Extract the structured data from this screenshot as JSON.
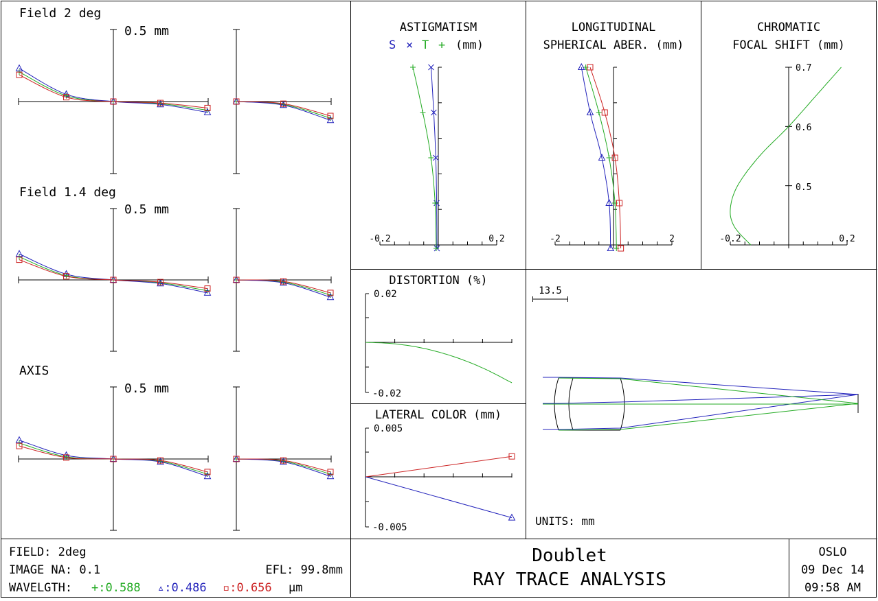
{
  "ray_fan": {
    "scale_label": "0.5 mm",
    "panels": [
      {
        "label": "Field 2 deg",
        "tan": {
          "pts_x": [
            -1,
            -0.5,
            0,
            0.5,
            1
          ],
          "green": [
            0.41,
            0.08,
            0,
            -0.03,
            -0.12
          ],
          "blue": [
            0.46,
            0.1,
            0,
            -0.04,
            -0.15
          ],
          "red": [
            0.37,
            0.06,
            0,
            -0.02,
            -0.09
          ]
        },
        "sag": {
          "pts_x": [
            0,
            0.5,
            1
          ],
          "green": [
            0,
            -0.04,
            -0.23
          ],
          "blue": [
            0,
            -0.05,
            -0.26
          ],
          "red": [
            0,
            -0.03,
            -0.2
          ]
        }
      },
      {
        "label": "Field 1.4 deg",
        "tan": {
          "pts_x": [
            -1,
            -0.5,
            0,
            0.5,
            1
          ],
          "green": [
            0.32,
            0.06,
            0,
            -0.04,
            -0.15
          ],
          "blue": [
            0.36,
            0.08,
            0,
            -0.05,
            -0.18
          ],
          "red": [
            0.28,
            0.05,
            0,
            -0.03,
            -0.12
          ]
        },
        "sag": {
          "pts_x": [
            0,
            0.5,
            1
          ],
          "green": [
            0,
            -0.03,
            -0.21
          ],
          "blue": [
            0,
            -0.04,
            -0.24
          ],
          "red": [
            0,
            -0.02,
            -0.18
          ]
        }
      },
      {
        "label": "AXIS",
        "tan": {
          "pts_x": [
            -1,
            -0.5,
            0,
            0.5,
            1
          ],
          "green": [
            0.22,
            0.03,
            0,
            -0.03,
            -0.21
          ],
          "blue": [
            0.26,
            0.05,
            0,
            -0.04,
            -0.24
          ],
          "red": [
            0.18,
            0.02,
            0,
            -0.02,
            -0.18
          ]
        },
        "sag": {
          "pts_x": [
            0,
            0.5,
            1
          ],
          "green": [
            0,
            -0.03,
            -0.21
          ],
          "blue": [
            0,
            -0.04,
            -0.24
          ],
          "red": [
            0,
            -0.02,
            -0.18
          ]
        }
      }
    ]
  },
  "astigmatism": {
    "title1": "ASTIGMATISM",
    "legend": {
      "s": "S",
      "x": "×",
      "t": "T",
      "plus": "+",
      "units": "(mm)"
    },
    "xlim": [
      -0.2,
      0.2
    ],
    "ticks": [
      "-0.2",
      "0.2"
    ],
    "field_frac": [
      0,
      0.25,
      0.5,
      0.75,
      1.0
    ],
    "sagittal": [
      0,
      -0.001,
      -0.004,
      -0.011,
      -0.02
    ],
    "tangential": [
      0,
      -0.004,
      -0.018,
      -0.046,
      -0.08
    ]
  },
  "longitudinal": {
    "title1": "LONGITUDINAL",
    "title2": "SPHERICAL ABER. (mm)",
    "xlim": [
      -2,
      2
    ],
    "ticks": [
      "-2",
      "2"
    ],
    "pupil_frac": [
      0,
      0.25,
      0.5,
      0.75,
      1.0
    ],
    "green": [
      0.1,
      0.05,
      -0.15,
      -0.5,
      -0.95
    ],
    "blue": [
      -0.1,
      -0.15,
      -0.4,
      -0.8,
      -1.1
    ],
    "red": [
      0.25,
      0.2,
      0.05,
      -0.3,
      -0.8
    ]
  },
  "chromatic": {
    "title1": "CHROMATIC",
    "title2": "FOCAL SHIFT (mm)",
    "xlim": [
      -0.2,
      0.2
    ],
    "ylim": [
      0.4,
      0.7
    ],
    "ticks": [
      "-0.2",
      "0.2"
    ],
    "yticks": [
      "0.7",
      "0.6",
      "0.5"
    ],
    "wavelength": [
      0.4,
      0.43,
      0.46,
      0.5,
      0.55,
      0.6,
      0.65,
      0.7
    ],
    "shift": [
      -0.13,
      -0.185,
      -0.2,
      -0.175,
      -0.1,
      0.0,
      0.09,
      0.18
    ]
  },
  "distortion": {
    "title": "DISTORTION (%)",
    "ylim": [
      -0.02,
      0.02
    ],
    "ytop": "0.02",
    "ybottom": "-0.02",
    "field_frac": [
      0,
      0.2,
      0.4,
      0.6,
      0.8,
      1.0
    ],
    "values": [
      0,
      -0.0006,
      -0.0025,
      -0.0058,
      -0.0105,
      -0.0166
    ]
  },
  "lateral_color": {
    "title": "LATERAL COLOR (mm)",
    "ylim": [
      -0.005,
      0.005
    ],
    "ytop": "0.005",
    "ybottom": "-0.005",
    "field_frac": [
      0,
      1.0
    ],
    "red": [
      0,
      0.0021
    ],
    "blue": [
      0,
      -0.0042
    ]
  },
  "layout_view": {
    "scale_label": "13.5",
    "units_label": "UNITS: mm"
  },
  "footer": {
    "field": "FIELD: 2deg",
    "image_na": "IMAGE NA: 0.1",
    "efl": "EFL: 99.8mm",
    "wavelength_label": "WAVELGTH:",
    "wl_green": "+:0.588",
    "wl_blue": "▵:0.486",
    "wl_red": "▫:0.656",
    "wl_unit": "µm",
    "title": "Doublet",
    "subtitle": "RAY TRACE ANALYSIS",
    "program": "OSLO",
    "date": "09 Dec 14",
    "time": "09:58 AM"
  },
  "colors": {
    "green": "#22aa22",
    "blue": "#2222bb",
    "red": "#cc2222",
    "frame": "#000000"
  }
}
